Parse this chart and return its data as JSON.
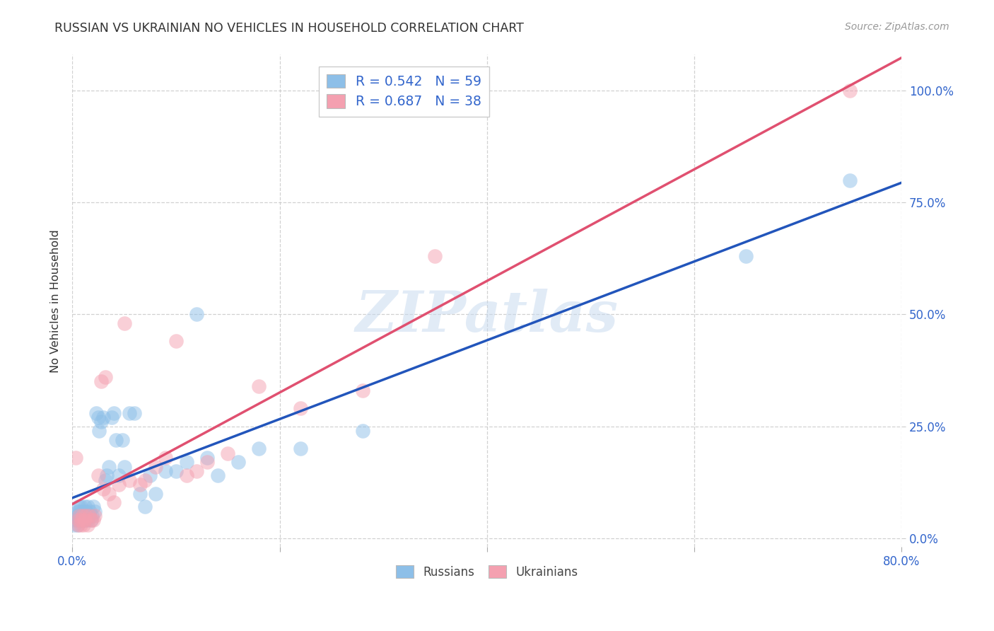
{
  "title": "RUSSIAN VS UKRAINIAN NO VEHICLES IN HOUSEHOLD CORRELATION CHART",
  "source": "Source: ZipAtlas.com",
  "ylabel": "No Vehicles in Household",
  "watermark": "ZIPatlas",
  "xlim": [
    0.0,
    0.8
  ],
  "ylim": [
    -0.02,
    1.08
  ],
  "xticks": [
    0.0,
    0.2,
    0.4,
    0.6,
    0.8
  ],
  "xtick_labels": [
    "0.0%",
    "",
    "",
    "",
    "80.0%"
  ],
  "yticks": [
    0.0,
    0.25,
    0.5,
    0.75,
    1.0
  ],
  "ytick_labels": [
    "0.0%",
    "25.0%",
    "50.0%",
    "75.0%",
    "100.0%"
  ],
  "russian_color": "#8dbfe8",
  "ukrainian_color": "#f4a0b0",
  "russian_R": 0.542,
  "russian_N": 59,
  "ukrainian_R": 0.687,
  "ukrainian_N": 38,
  "russian_line_color": "#2255bb",
  "ukrainian_line_color": "#e05070",
  "legend_text_color": "#3366cc",
  "background_color": "#ffffff",
  "grid_color": "#cccccc",
  "title_color": "#333333",
  "russians_x": [
    0.002,
    0.003,
    0.004,
    0.005,
    0.005,
    0.006,
    0.006,
    0.007,
    0.007,
    0.008,
    0.008,
    0.009,
    0.01,
    0.01,
    0.011,
    0.012,
    0.013,
    0.013,
    0.014,
    0.015,
    0.015,
    0.016,
    0.017,
    0.018,
    0.019,
    0.02,
    0.022,
    0.023,
    0.025,
    0.026,
    0.028,
    0.03,
    0.032,
    0.033,
    0.035,
    0.038,
    0.04,
    0.042,
    0.045,
    0.048,
    0.05,
    0.055,
    0.06,
    0.065,
    0.07,
    0.075,
    0.08,
    0.09,
    0.1,
    0.11,
    0.12,
    0.13,
    0.14,
    0.16,
    0.18,
    0.22,
    0.28,
    0.65,
    0.75
  ],
  "russians_y": [
    0.03,
    0.04,
    0.05,
    0.03,
    0.06,
    0.04,
    0.07,
    0.05,
    0.06,
    0.04,
    0.07,
    0.05,
    0.04,
    0.06,
    0.05,
    0.07,
    0.04,
    0.06,
    0.05,
    0.04,
    0.07,
    0.05,
    0.06,
    0.04,
    0.05,
    0.07,
    0.06,
    0.28,
    0.27,
    0.24,
    0.26,
    0.27,
    0.13,
    0.14,
    0.16,
    0.27,
    0.28,
    0.22,
    0.14,
    0.22,
    0.16,
    0.28,
    0.28,
    0.1,
    0.07,
    0.14,
    0.1,
    0.15,
    0.15,
    0.17,
    0.5,
    0.18,
    0.14,
    0.17,
    0.2,
    0.2,
    0.24,
    0.63,
    0.8
  ],
  "ukrainians_x": [
    0.003,
    0.005,
    0.006,
    0.007,
    0.008,
    0.009,
    0.01,
    0.011,
    0.012,
    0.013,
    0.015,
    0.016,
    0.018,
    0.02,
    0.022,
    0.025,
    0.028,
    0.03,
    0.032,
    0.035,
    0.04,
    0.045,
    0.05,
    0.055,
    0.065,
    0.07,
    0.08,
    0.09,
    0.1,
    0.11,
    0.12,
    0.13,
    0.15,
    0.18,
    0.22,
    0.28,
    0.35,
    0.75
  ],
  "ukrainians_y": [
    0.18,
    0.03,
    0.04,
    0.05,
    0.03,
    0.04,
    0.05,
    0.03,
    0.04,
    0.05,
    0.03,
    0.05,
    0.04,
    0.04,
    0.05,
    0.14,
    0.35,
    0.11,
    0.36,
    0.1,
    0.08,
    0.12,
    0.48,
    0.13,
    0.12,
    0.13,
    0.16,
    0.18,
    0.44,
    0.14,
    0.15,
    0.17,
    0.19,
    0.34,
    0.29,
    0.33,
    0.63,
    1.0
  ]
}
